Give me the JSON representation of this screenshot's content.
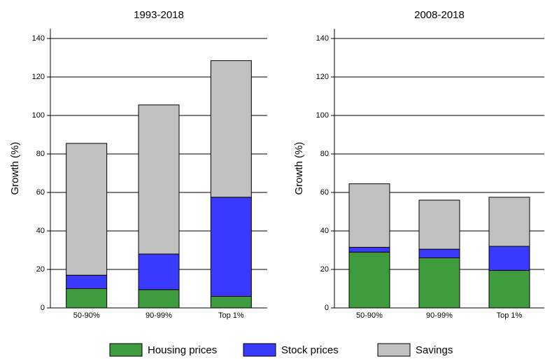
{
  "chart_data": [
    {
      "type": "bar",
      "stacked": true,
      "title": "1993-2018",
      "y_label": "Growth (%)",
      "categories": [
        "50-90%",
        "90-99%",
        "Top 1%"
      ],
      "series": [
        {
          "name": "Housing prices",
          "color": "#3e9b3e",
          "values": [
            10,
            9.5,
            6
          ]
        },
        {
          "name": "Stock prices",
          "color": "#3a3aff",
          "values": [
            7,
            18.5,
            51.5
          ]
        },
        {
          "name": "Savings",
          "color": "#c0c0c0",
          "values": [
            68.5,
            77.5,
            71
          ]
        }
      ],
      "ylim": [
        0,
        145
      ],
      "yticks": [
        0,
        20,
        40,
        60,
        80,
        100,
        120,
        140
      ],
      "grid": true
    },
    {
      "type": "bar",
      "stacked": true,
      "title": "2008-2018",
      "y_label": "Growth (%)",
      "categories": [
        "50-90%",
        "90-99%",
        "Top 1%"
      ],
      "series": [
        {
          "values": [
            29,
            26,
            19.5
          ]
        },
        {
          "values": [
            2.5,
            4.5,
            12.5
          ]
        },
        {
          "values": [
            33,
            25.5,
            25.5
          ]
        }
      ],
      "ylim": [
        0,
        145
      ],
      "yticks": [
        0,
        20,
        40,
        60,
        80,
        100,
        120,
        140
      ],
      "grid": true
    }
  ]
}
